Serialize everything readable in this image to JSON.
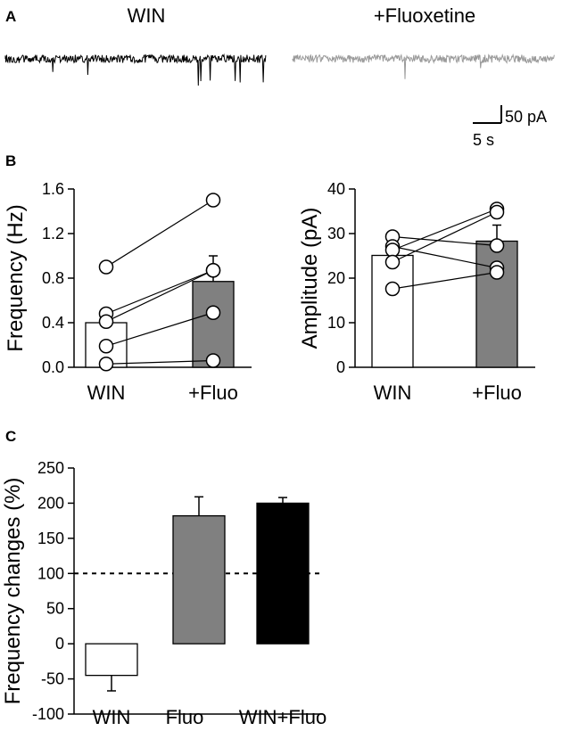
{
  "panels": {
    "a": {
      "label": "A"
    },
    "b": {
      "label": "B"
    },
    "c": {
      "label": "C"
    }
  },
  "traces": {
    "left_title": "WIN",
    "right_title": "+Fluoxetine",
    "colors": {
      "left": "#000000",
      "right": "#9a9a9a"
    },
    "scale_bar": {
      "current": "50 pA",
      "time": "5 s"
    }
  },
  "chart_data": [
    {
      "id": "frequency",
      "type": "bar",
      "ylabel": "Frequency (Hz)",
      "categories": [
        "WIN",
        "+Fluo"
      ],
      "values": [
        0.4,
        0.77
      ],
      "errors": [
        0.1,
        0.23
      ],
      "bar_colors": [
        "#ffffff",
        "#808080"
      ],
      "ylim": [
        0,
        1.6
      ],
      "yticks": [
        "0.0",
        "0.4",
        "0.8",
        "1.2",
        "1.6"
      ],
      "paired_points": [
        [
          0.9,
          1.5
        ],
        [
          0.48,
          0.87
        ],
        [
          0.41,
          0.87
        ],
        [
          0.19,
          0.49
        ],
        [
          0.03,
          0.06
        ]
      ]
    },
    {
      "id": "amplitude",
      "type": "bar",
      "ylabel": "Amplitude (pA)",
      "categories": [
        "WIN",
        "+Fluo"
      ],
      "values": [
        25.1,
        28.3
      ],
      "errors": [
        2.2,
        3.6
      ],
      "bar_colors": [
        "#ffffff",
        "#808080"
      ],
      "ylim": [
        0,
        40
      ],
      "yticks": [
        "0",
        "10",
        "20",
        "30",
        "40"
      ],
      "paired_points": [
        [
          29.3,
          27.3
        ],
        [
          27.1,
          22.3
        ],
        [
          26.3,
          35.5
        ],
        [
          23.6,
          34.8
        ],
        [
          17.6,
          21.3
        ]
      ]
    },
    {
      "id": "frequency-changes",
      "type": "bar",
      "ylabel": "Frequency changes (%)",
      "categories": [
        "WIN",
        "Fluo",
        "WIN+Fluo"
      ],
      "values": [
        -45,
        182,
        200
      ],
      "errors": [
        22,
        27,
        8
      ],
      "bar_colors": [
        "#ffffff",
        "#808080",
        "#000000"
      ],
      "ylim": [
        -100,
        250
      ],
      "yticks": [
        "-100",
        "-50",
        "0",
        "50",
        "100",
        "150",
        "200",
        "250"
      ],
      "reference_line": 100
    }
  ]
}
